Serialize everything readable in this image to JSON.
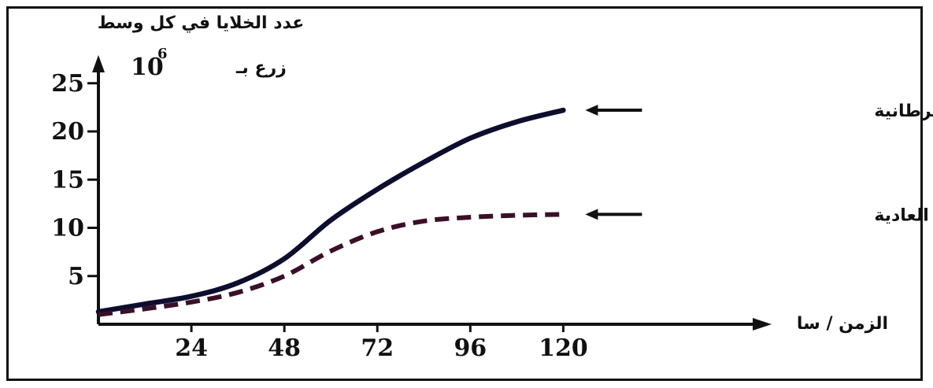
{
  "chart_data": {
    "type": "line",
    "ylabel_line1": "عدد الخلايا في كل وسط",
    "ylabel_line2": "زرع بـ",
    "ylabel_unit": "10",
    "ylabel_exp": "6",
    "xlabel": "الزمن / سا",
    "x_ticks": [
      "24",
      "48",
      "72",
      "96",
      "120"
    ],
    "y_ticks": [
      "5",
      "10",
      "15",
      "20",
      "25"
    ],
    "xlim": [
      0,
      120
    ],
    "ylim": [
      0,
      25
    ],
    "legend_placement": "right",
    "series": [
      {
        "name": "الخلايا السرطانية",
        "style": "solid",
        "color": "#0d0d2e",
        "x": [
          0,
          12,
          24,
          36,
          48,
          60,
          72,
          84,
          96,
          108,
          120
        ],
        "y": [
          1.3,
          2.1,
          2.9,
          4.3,
          6.8,
          10.8,
          14.0,
          16.8,
          19.3,
          21.0,
          22.2
        ]
      },
      {
        "name": "الخلايا العادية",
        "style": "dashed",
        "color": "#3a1028",
        "x": [
          0,
          12,
          24,
          36,
          48,
          60,
          72,
          84,
          96,
          108,
          120
        ],
        "y": [
          1.0,
          1.6,
          2.3,
          3.3,
          5.0,
          7.6,
          9.6,
          10.7,
          11.1,
          11.3,
          11.4
        ]
      }
    ]
  }
}
